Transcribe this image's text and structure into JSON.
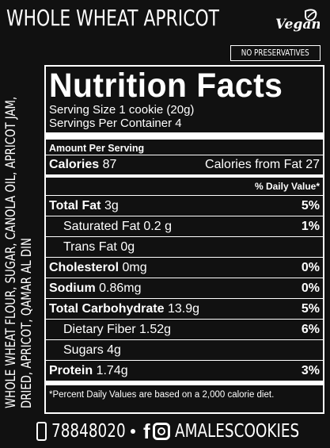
{
  "header": {
    "title": "WHOLE WHEAT APRICOT",
    "vegan_logo_text": "Vegan",
    "badge": "NO PRESERVATIVES"
  },
  "ingredients": {
    "line1": "WHOLE WHEAT FLOUR, SUGAR, CANOLA OIL, APRICOT JAM,",
    "line2": "DRIED, APRICOT, QAMAR AL DIN"
  },
  "nutrition": {
    "heading": "Nutrition Facts",
    "serving_size": "Serving Size 1 cookie (20g)",
    "servings_per_container": "Servings Per Container 4",
    "amount_per_serving": "Amount Per Serving",
    "calories_label": "Calories",
    "calories_value": "87",
    "calories_fat_label": "Calories from Fat",
    "calories_fat_value": "27",
    "dv_header": "% Daily Value*",
    "rows": [
      {
        "label": "Total Fat",
        "amount": "3g",
        "dv": "5%"
      },
      {
        "label": "Saturated Fat",
        "amount": "0.2 g",
        "dv": "1%"
      },
      {
        "label": "Trans Fat",
        "amount": "0g",
        "dv": ""
      },
      {
        "label": "Cholesterol",
        "amount": "0mg",
        "dv": "0%"
      },
      {
        "label": "Sodium",
        "amount": "0.86mg",
        "dv": "0%"
      },
      {
        "label": "Total Carbohydrate",
        "amount": "13.9g",
        "dv": "5%"
      },
      {
        "label": "Dietary Fiber",
        "amount": "1.52g",
        "dv": "6%"
      },
      {
        "label": "Sugars",
        "amount": "4g",
        "dv": ""
      },
      {
        "label": "Protein",
        "amount": "1.74g",
        "dv": "3%"
      }
    ],
    "footnote": "*Percent Daily Values are based on a 2,000 calorie diet."
  },
  "contact": {
    "phone": "78848020",
    "facebook_glyph": "f",
    "handle": "AMALESCOOKIES"
  },
  "colors": {
    "background": "#111111",
    "foreground": "#ffffff"
  }
}
